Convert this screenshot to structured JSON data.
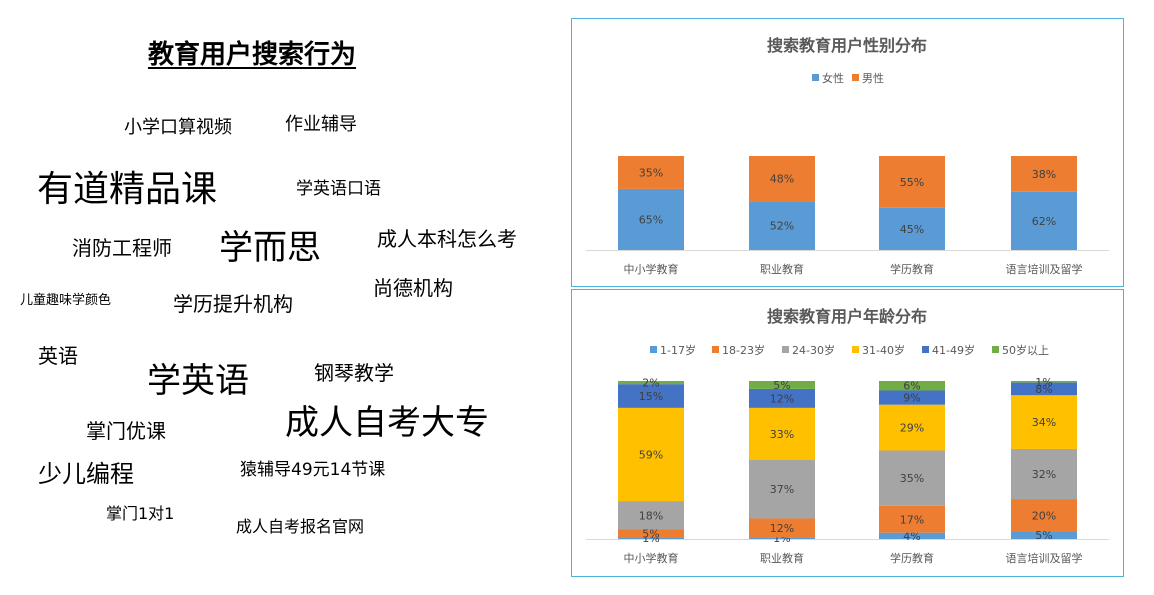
{
  "word_cloud": {
    "title": "教育用户搜索行为",
    "words": [
      {
        "text": "小学口算视频",
        "size": 18
      },
      {
        "text": "作业辅导",
        "size": 18
      },
      {
        "text": "有道精品课",
        "size": 36
      },
      {
        "text": "学英语口语",
        "size": 17
      },
      {
        "text": "消防工程师",
        "size": 20
      },
      {
        "text": "学而思",
        "size": 34
      },
      {
        "text": "成人本科怎么考",
        "size": 20
      },
      {
        "text": "儿童趣味学颜色",
        "size": 13
      },
      {
        "text": "学历提升机构",
        "size": 20
      },
      {
        "text": "尚德机构",
        "size": 20
      },
      {
        "text": "英语",
        "size": 20
      },
      {
        "text": "学英语",
        "size": 34
      },
      {
        "text": "钢琴教学",
        "size": 20
      },
      {
        "text": "掌门优课",
        "size": 20
      },
      {
        "text": "成人自考大专",
        "size": 34
      },
      {
        "text": "少儿编程",
        "size": 24
      },
      {
        "text": "猿辅导49元14节课",
        "size": 17
      },
      {
        "text": "掌门1对1",
        "size": 16
      },
      {
        "text": "成人自考报名官网",
        "size": 16
      }
    ]
  },
  "chart_data": [
    {
      "type": "bar",
      "stacked": true,
      "title": "搜索教育用户性别分布",
      "categories": [
        "中小学教育",
        "职业教育",
        "学历教育",
        "语言培训及留学"
      ],
      "series": [
        {
          "name": "女性",
          "color": "#5b9bd5",
          "values": [
            65,
            52,
            45,
            62
          ],
          "labels": [
            "65%",
            "52%",
            "45%",
            "62%"
          ]
        },
        {
          "name": "男性",
          "color": "#ed7d31",
          "values": [
            35,
            48,
            55,
            38
          ],
          "labels": [
            "35%",
            "48%",
            "55%",
            "38%"
          ]
        }
      ],
      "ylim": [
        0,
        100
      ],
      "legend": "top",
      "grid": false
    },
    {
      "type": "bar",
      "stacked": true,
      "title": "搜索教育用户年龄分布",
      "categories": [
        "中小学教育",
        "职业教育",
        "学历教育",
        "语言培训及留学"
      ],
      "series": [
        {
          "name": "1-17岁",
          "color": "#5b9bd5",
          "values": [
            1,
            1,
            4,
            5
          ],
          "labels": [
            "1%",
            "1%",
            "4%",
            "5%"
          ]
        },
        {
          "name": "18-23岁",
          "color": "#ed7d31",
          "values": [
            5,
            12,
            17,
            20
          ],
          "labels": [
            "5%",
            "12%",
            "17%",
            "20%"
          ]
        },
        {
          "name": "24-30岁",
          "color": "#a5a5a5",
          "values": [
            18,
            37,
            35,
            32
          ],
          "labels": [
            "18%",
            "37%",
            "35%",
            "32%"
          ]
        },
        {
          "name": "31-40岁",
          "color": "#ffc000",
          "values": [
            59,
            33,
            29,
            34
          ],
          "labels": [
            "59%",
            "33%",
            "29%",
            "34%"
          ]
        },
        {
          "name": "41-49岁",
          "color": "#4472c4",
          "values": [
            15,
            12,
            9,
            8
          ],
          "labels": [
            "15%",
            "12%",
            "9%",
            "8%"
          ]
        },
        {
          "name": "50岁以上",
          "color": "#70ad47",
          "values": [
            2,
            5,
            6,
            1
          ],
          "labels": [
            "2%",
            "5%",
            "6%",
            "1%"
          ]
        }
      ],
      "ylim": [
        0,
        100
      ],
      "legend": "top",
      "grid": false
    }
  ]
}
